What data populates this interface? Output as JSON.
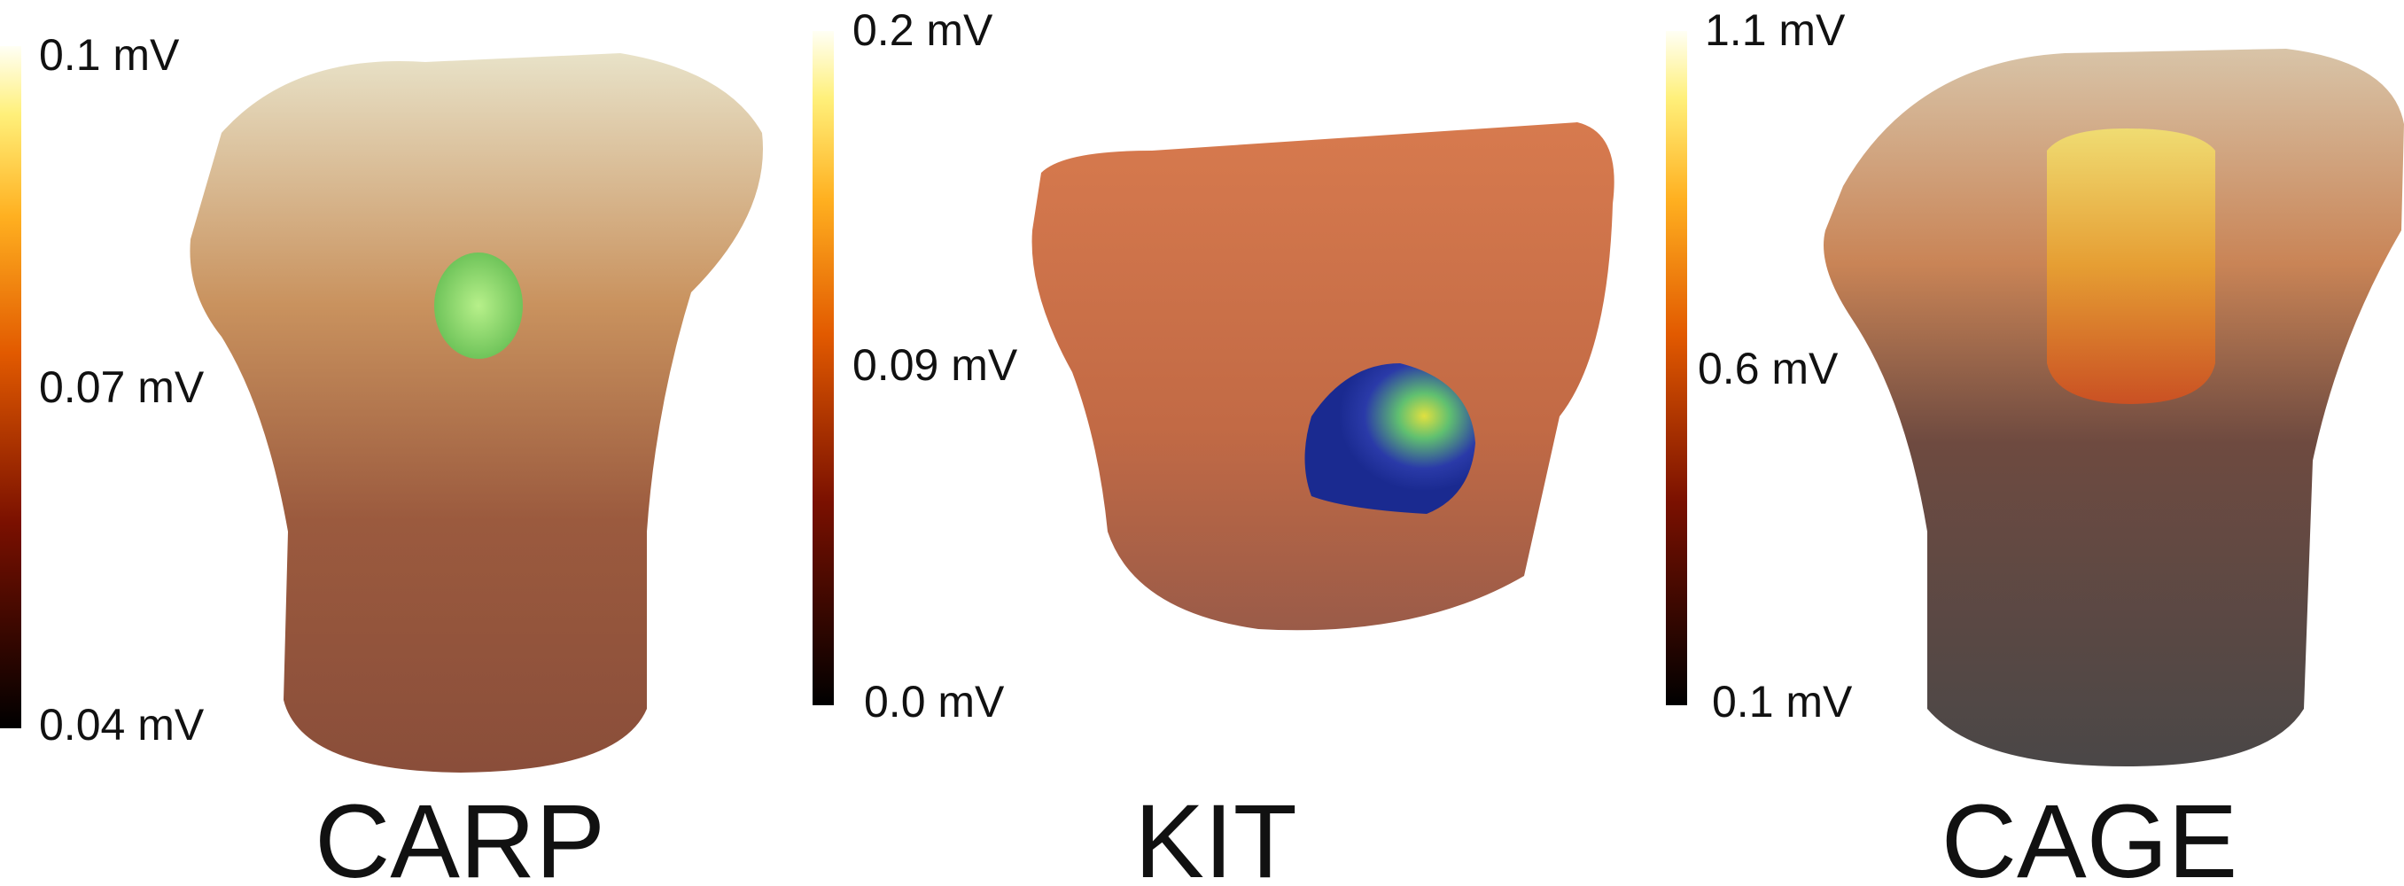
{
  "panels": [
    {
      "label": "CARP",
      "colorbar": {
        "ticks": [
          "0.1 mV",
          "0.07 mV",
          "0.04 mV"
        ]
      }
    },
    {
      "label": "KIT",
      "colorbar": {
        "ticks": [
          "0.2 mV",
          "0.09 mV",
          "0.0 mV"
        ]
      }
    },
    {
      "label": "CAGE",
      "colorbar": {
        "ticks": [
          "1.1 mV",
          "0.6 mV",
          "0.1 mV"
        ]
      }
    }
  ]
}
